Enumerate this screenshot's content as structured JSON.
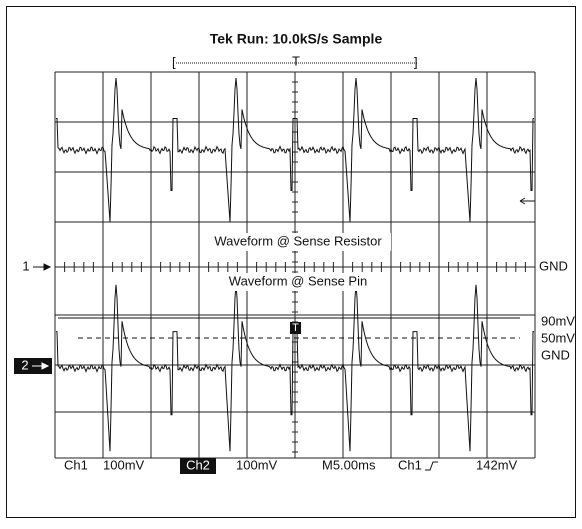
{
  "header": {
    "title": "Tek Run: 10.0kS/s Sample",
    "trigger_marker": "T"
  },
  "traces": [
    {
      "label": "Waveform @ Sense Resistor",
      "channel": "1",
      "ground": "GND"
    },
    {
      "label": "Waveform @ Sense Pin",
      "channel": "2",
      "ground": "GND",
      "trigger_marker": "T"
    }
  ],
  "levels": [
    "90mV",
    "50mV"
  ],
  "readout": [
    "Ch1",
    "100mV",
    "Ch2",
    "100mV",
    "M5.00ms",
    "Ch1",
    "142mV"
  ]
}
